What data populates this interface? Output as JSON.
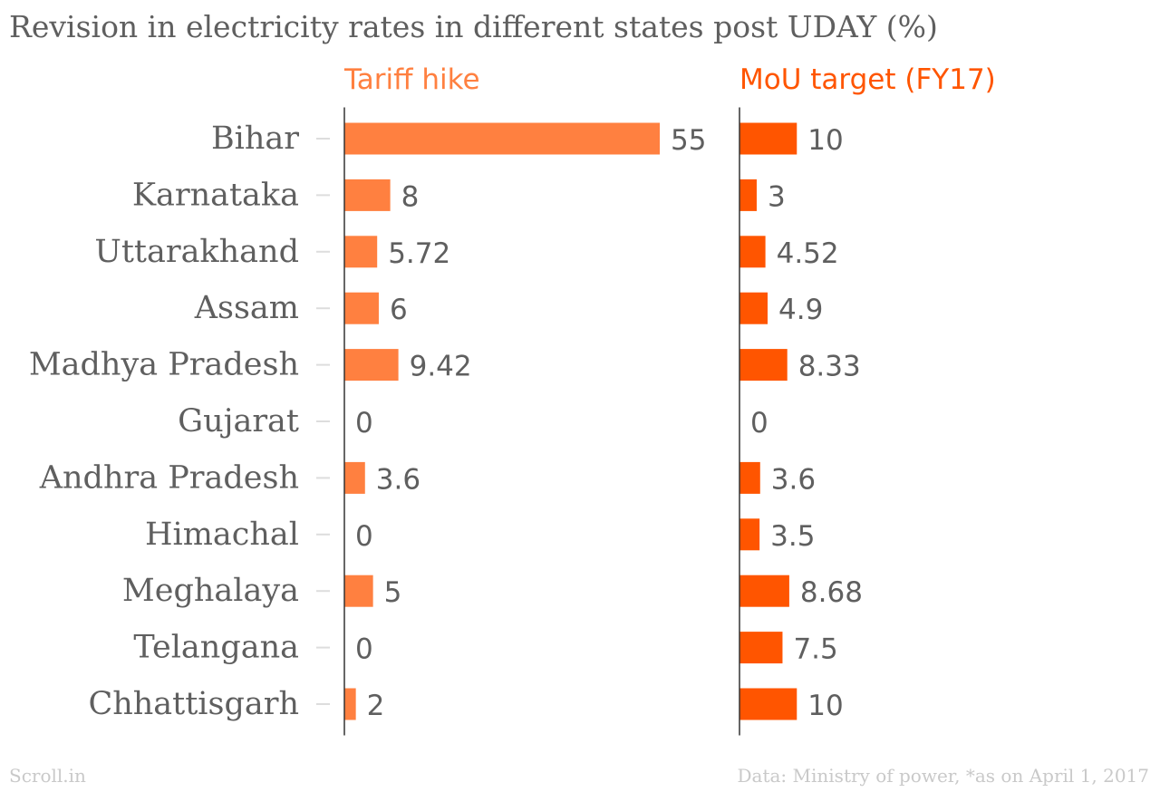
{
  "title": "Revision in electricity rates in different states post UDAY (%)",
  "footer": {
    "source_brand": "Scroll.in",
    "note": "Data: Ministry of power, *as on April 1, 2017"
  },
  "colors": {
    "tariff": "#ff8040",
    "mou": "#ff5500",
    "text": "#5f5f5f",
    "axis": "#333333",
    "tick": "#dddddd"
  },
  "chart_data": {
    "type": "bar",
    "orientation": "horizontal",
    "categories": [
      "Bihar",
      "Karnataka",
      "Uttarakhand",
      "Assam",
      "Madhya Pradesh",
      "Gujarat",
      "Andhra Pradesh",
      "Himachal",
      "Meghalaya",
      "Telangana",
      "Chhattisgarh"
    ],
    "series": [
      {
        "name": "Tariff hike",
        "values": [
          55,
          8,
          5.72,
          6,
          9.42,
          0,
          3.6,
          0,
          5,
          0,
          2
        ],
        "labels": [
          "55",
          "8",
          "5.72",
          "6",
          "9.42",
          "0",
          "3.6",
          "0",
          "5",
          "0",
          "2"
        ]
      },
      {
        "name": "MoU target (FY17)",
        "values": [
          10,
          3,
          4.52,
          4.9,
          8.33,
          0,
          3.6,
          3.5,
          8.68,
          7.5,
          10
        ],
        "labels": [
          "10",
          "3",
          "4.52",
          "4.9",
          "8.33",
          "0",
          "3.6",
          "3.5",
          "8.68",
          "7.5",
          "10"
        ]
      }
    ],
    "xlim": [
      0,
      55
    ],
    "grid": false,
    "legend": "none"
  }
}
